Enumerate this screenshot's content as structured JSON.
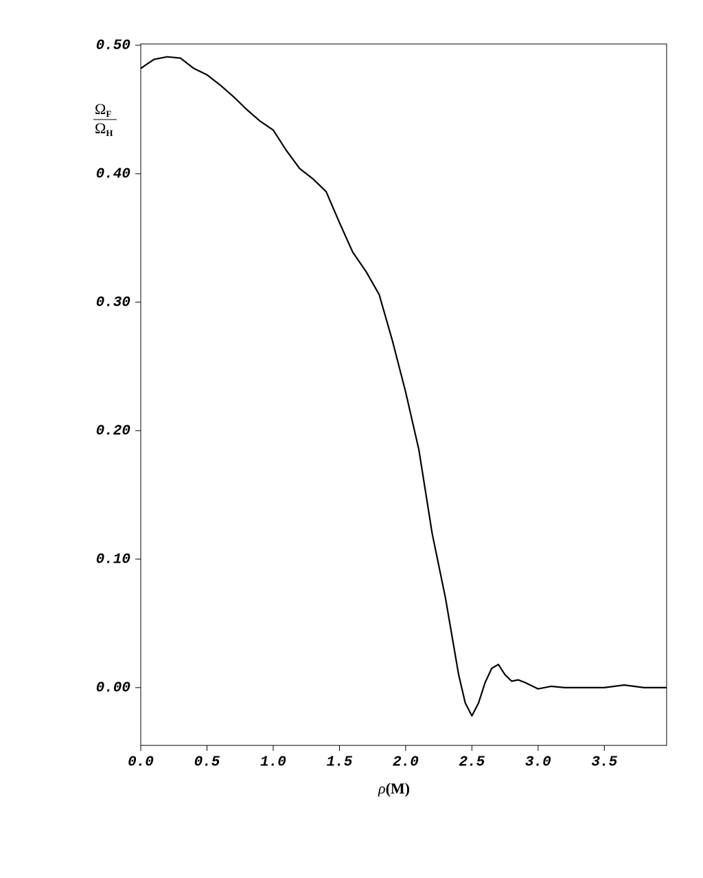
{
  "chart_data": {
    "type": "line",
    "x_label": {
      "symbol": "ρ",
      "unit": "(M)"
    },
    "y_label": {
      "numerator": {
        "symbol": "Ω",
        "subscript": "F"
      },
      "denominator": {
        "symbol": "Ω",
        "subscript": "H"
      }
    },
    "x": [
      0,
      0.1,
      0.2,
      0.3,
      0.4,
      0.5,
      0.6,
      0.7,
      0.8,
      0.9,
      1.0,
      1.1,
      1.2,
      1.3,
      1.4,
      1.5,
      1.6,
      1.7,
      1.8,
      1.9,
      2.0,
      2.1,
      2.2,
      2.3,
      2.4,
      2.45,
      2.5,
      2.55,
      2.6,
      2.65,
      2.7,
      2.75,
      2.8,
      2.85,
      2.9,
      3.0,
      3.1,
      3.2,
      3.4,
      3.5,
      3.65,
      3.8,
      3.97
    ],
    "series": [
      {
        "color": "#000000",
        "values": [
          0.482,
          0.489,
          0.491,
          0.49,
          0.482,
          0.477,
          0.469,
          0.46,
          0.45,
          0.441,
          0.434,
          0.418,
          0.404,
          0.396,
          0.386,
          0.362,
          0.339,
          0.324,
          0.306,
          0.27,
          0.23,
          0.185,
          0.12,
          0.07,
          0.01,
          -0.012,
          -0.022,
          -0.012,
          0.004,
          0.015,
          0.018,
          0.01,
          0.005,
          0.006,
          0.004,
          -0.001,
          0.001,
          0.0,
          0.0,
          0.0,
          0.002,
          0.0,
          0.0
        ]
      }
    ],
    "xlim": [
      0,
      3.97
    ],
    "ylim": [
      -0.045,
      0.501
    ],
    "xticks": [
      {
        "value": 0,
        "label": "0.0"
      },
      {
        "value": 0.5,
        "label": "0.5"
      },
      {
        "value": 1,
        "label": "1.0"
      },
      {
        "value": 1.5,
        "label": "1.5"
      },
      {
        "value": 2,
        "label": "2.0"
      },
      {
        "value": 2.5,
        "label": "2.5"
      },
      {
        "value": 3,
        "label": "3.0"
      },
      {
        "value": 3.5,
        "label": "3.5"
      }
    ],
    "yticks": [
      {
        "value": 0,
        "label": "0.00"
      },
      {
        "value": 0.1,
        "label": "0.10"
      },
      {
        "value": 0.2,
        "label": "0.20"
      },
      {
        "value": 0.3,
        "label": "0.30"
      },
      {
        "value": 0.4,
        "label": "0.40"
      },
      {
        "value": 0.5,
        "label": "0.50"
      }
    ]
  }
}
